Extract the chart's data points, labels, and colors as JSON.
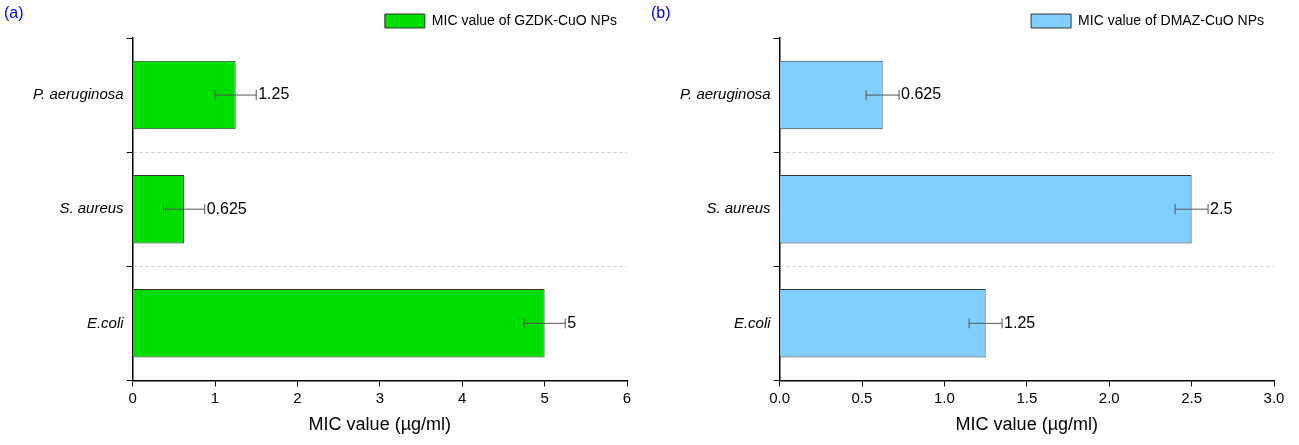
{
  "chart_data": [
    {
      "type": "bar",
      "orientation": "horizontal",
      "annotations": [
        "(a)"
      ],
      "xlabel": "MIC value (µg/ml)",
      "categories": [
        "P. aeruginosa",
        "S. aureus",
        "E.coli"
      ],
      "series": [
        {
          "name": "MIC value of GZDK-CuO NPs",
          "color": "#00dd00",
          "values": [
            1.25,
            0.625,
            5
          ],
          "errors": [
            0.25,
            0.25,
            0.25
          ]
        }
      ],
      "xlim": [
        0,
        6
      ],
      "xticks": [
        0,
        1,
        2,
        3,
        4,
        5,
        6
      ],
      "grid": "y",
      "legend": "top right",
      "data_labels": true
    },
    {
      "type": "bar",
      "orientation": "horizontal",
      "annotations": [
        "(b)"
      ],
      "xlabel": "MIC value (µg/ml)",
      "categories": [
        "P. aeruginosa",
        "S. aureus",
        "E.coli"
      ],
      "series": [
        {
          "name": "MIC value of DMAZ-CuO NPs",
          "color": "#80cfff",
          "values": [
            0.625,
            2.5,
            1.25
          ],
          "errors": [
            0.1,
            0.1,
            0.1
          ]
        }
      ],
      "xlim": [
        0,
        3
      ],
      "xticks": [
        {
          "value": 0,
          "label": "0.0"
        },
        {
          "value": 0.5,
          "label": "0.5"
        },
        {
          "value": 1,
          "label": "1.0"
        },
        {
          "value": 1.5,
          "label": "1.5"
        },
        {
          "value": 2,
          "label": "2.0"
        },
        {
          "value": 2.5,
          "label": "2.5"
        },
        {
          "value": 3,
          "label": "3.0"
        }
      ],
      "grid": "y",
      "legend": "top right",
      "data_labels": true
    }
  ]
}
